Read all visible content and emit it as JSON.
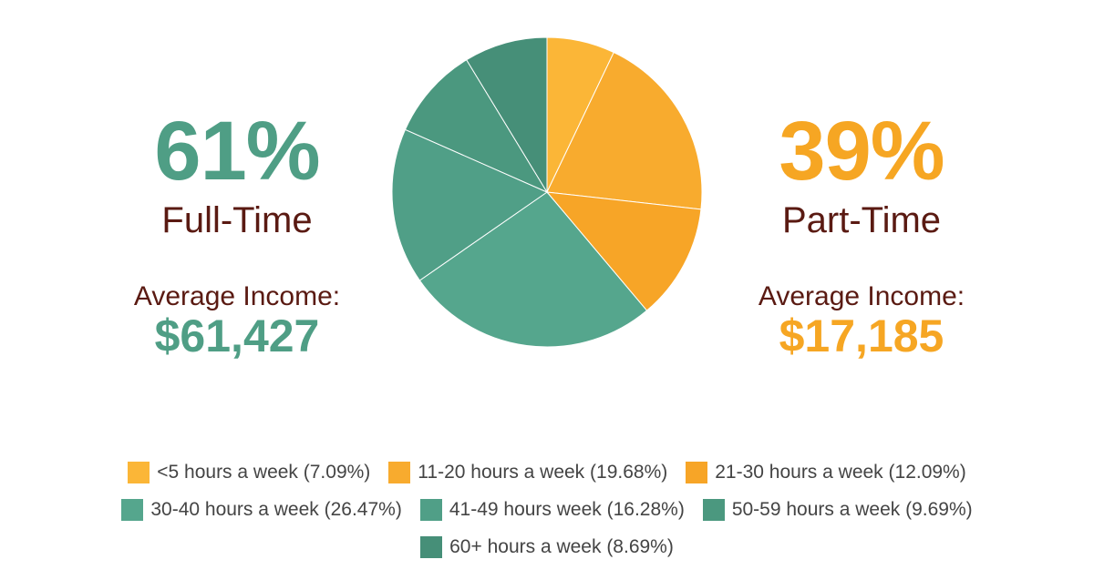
{
  "full_time": {
    "percent": "61%",
    "label": "Full-Time",
    "income_label": "Average Income:",
    "income": "$61,427"
  },
  "part_time": {
    "percent": "39%",
    "label": "Part-Time",
    "income_label": "Average Income:",
    "income": "$17,185"
  },
  "colors": {
    "full_time_accent": "#4f9e85",
    "part_time_accent": "#f6a623",
    "label_text": "#5a1a12"
  },
  "chart_data": {
    "type": "pie",
    "slices": [
      {
        "label": "<5 hours a week (7.09%)",
        "value": 7.09,
        "color": "#fbb637"
      },
      {
        "label": "11-20 hours a week (19.68%)",
        "value": 19.68,
        "color": "#f8ab2e"
      },
      {
        "label": "21-30 hours a week (12.09%)",
        "value": 12.09,
        "color": "#f7a527"
      },
      {
        "label": "30-40 hours a week (26.47%)",
        "value": 26.47,
        "color": "#55a68d"
      },
      {
        "label": "41-49 hours week (16.28%)",
        "value": 16.28,
        "color": "#509f87"
      },
      {
        "label": "50-59 hours a week (9.69%)",
        "value": 9.69,
        "color": "#4b987f"
      },
      {
        "label": "60+ hours a week (8.69%)",
        "value": 8.69,
        "color": "#468f78"
      }
    ],
    "legend_rows": [
      [
        0,
        1,
        2
      ],
      [
        3,
        4,
        5
      ],
      [
        6
      ]
    ],
    "legend_position": "bottom"
  }
}
